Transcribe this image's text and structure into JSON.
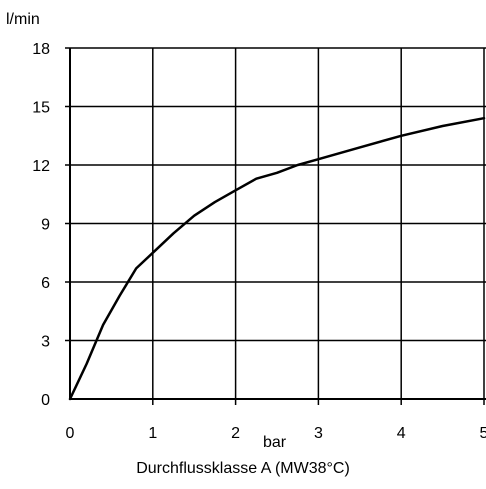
{
  "chart_data": {
    "type": "line",
    "ylabel": "l/min",
    "xlabel": "bar",
    "caption": "Durchflussklasse A (MW38°C)",
    "xlim": [
      0,
      5
    ],
    "ylim": [
      0,
      18
    ],
    "x_ticks": [
      0,
      1,
      2,
      3,
      4,
      5
    ],
    "y_ticks": [
      0,
      3,
      6,
      9,
      12,
      15,
      18
    ],
    "grid": true,
    "series": [
      {
        "color": "#000000",
        "x": [
          0,
          0.2,
          0.4,
          0.6,
          0.8,
          1.0,
          1.25,
          1.5,
          1.75,
          2.0,
          2.25,
          2.5,
          2.75,
          3.0,
          3.5,
          4.0,
          4.5,
          5.0
        ],
        "y": [
          0,
          1.8,
          3.8,
          5.3,
          6.7,
          7.5,
          8.5,
          9.4,
          10.1,
          10.7,
          11.3,
          11.6,
          12.0,
          12.3,
          12.9,
          13.5,
          14.0,
          14.4
        ]
      }
    ]
  }
}
